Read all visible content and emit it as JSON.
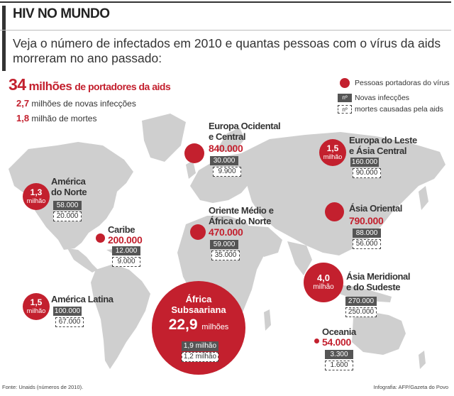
{
  "header": {
    "title": "HIV NO MUNDO",
    "subtitle": "Veja o número de infectados em 2010 e quantas pessoas com o vírus da aids morreram no ano passado:"
  },
  "summary": {
    "total_number": "34",
    "total_unit": "milhões",
    "total_text": "de portadores da aids",
    "new_number": "2,7",
    "new_text": "milhões de novas infecções",
    "deaths_number": "1,8",
    "deaths_text": "milhão de mortes"
  },
  "legend": {
    "carriers": "Pessoas portadoras do vírus",
    "new_symbol": "nº",
    "new_label": "Novas infecções",
    "deaths_symbol": "nº",
    "deaths_label": "mortes causadas pela aids"
  },
  "chart_data": {
    "type": "bubble-map",
    "title": "HIV NO MUNDO",
    "unit_note": "Pessoas portadoras do vírus; novas infecções; mortes causadas pela aids",
    "regions": [
      {
        "id": "europa-ocidental",
        "name": "Europa Ocidental e Central",
        "name_lines": [
          "Europa Ocidental",
          "e Central"
        ],
        "carriers": 840000,
        "carriers_label": "840.000",
        "new_infections": "30.000",
        "deaths": "9.900"
      },
      {
        "id": "europa-leste",
        "name": "Europa do Leste e Ásia Central",
        "name_lines": [
          "Europa do Leste",
          "e Ásia Central"
        ],
        "carriers": 1500000,
        "carriers_value": "1,5",
        "carriers_unit": "milhão",
        "new_infections": "160.000",
        "deaths": "90.000"
      },
      {
        "id": "america-norte",
        "name": "América do Norte",
        "name_lines": [
          "América",
          "do Norte"
        ],
        "carriers": 1300000,
        "carriers_value": "1,3",
        "carriers_unit": "milhão",
        "new_infections": "58.000",
        "deaths": "20.000"
      },
      {
        "id": "caribe",
        "name": "Caribe",
        "name_lines": [
          "Caribe"
        ],
        "carriers": 200000,
        "carriers_label": "200.000",
        "new_infections": "12.000",
        "deaths": "9.000"
      },
      {
        "id": "oriente-medio",
        "name": "Oriente Médio e África do Norte",
        "name_lines": [
          "Oriente Médio e",
          "África do Norte"
        ],
        "carriers": 470000,
        "carriers_label": "470.000",
        "new_infections": "59.000",
        "deaths": "35.000"
      },
      {
        "id": "asia-oriental",
        "name": "Ásia Oriental",
        "name_lines": [
          "Ásia Oriental"
        ],
        "carriers": 790000,
        "carriers_label": "790.000",
        "new_infections": "88.000",
        "deaths": "56.000"
      },
      {
        "id": "america-latina",
        "name": "América Latina",
        "name_lines": [
          "América Latina"
        ],
        "carriers": 1500000,
        "carriers_value": "1,5",
        "carriers_unit": "milhão",
        "new_infections": "100.000",
        "deaths": "67.000"
      },
      {
        "id": "asia-meridional",
        "name": "Ásia Meridional e do Sudeste",
        "name_lines": [
          "Ásia Meridional",
          "e do Sudeste"
        ],
        "carriers": 4000000,
        "carriers_value": "4,0",
        "carriers_unit": "milhão",
        "new_infections": "270.000",
        "deaths": "250.000"
      },
      {
        "id": "africa-subsaariana",
        "name": "África Subsaariana",
        "name_lines": [
          "África",
          "Subsaariana"
        ],
        "carriers": 22900000,
        "carriers_value": "22,9",
        "carriers_unit": "milhões",
        "new_infections": "1,9 milhão",
        "deaths": "1,2 milhão"
      },
      {
        "id": "oceania",
        "name": "Oceania",
        "name_lines": [
          "Oceania"
        ],
        "carriers": 54000,
        "carriers_label": "54.000",
        "new_infections": "3.300",
        "deaths": "1.600"
      }
    ]
  },
  "footer": {
    "source": "Fonte: Unaids (números de 2010).",
    "credit": "Infografia: AFP/Gazeta do Povo"
  },
  "colors": {
    "accent": "#c3202e",
    "map": "#cfcfcf",
    "dark_box": "#555555"
  }
}
